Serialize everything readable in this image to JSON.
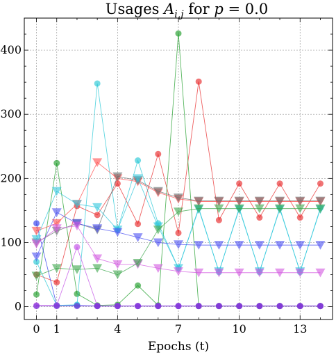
{
  "chart_data": {
    "type": "line",
    "title": "Usages A_{i,j} for p = 0.0",
    "title_parts": {
      "prefix": "Usages ",
      "symbol": "A",
      "subscript": "i,j",
      "suffix": " for ",
      "var": "p",
      "equals": " = 0.0"
    },
    "xlabel": "Epochs (t)",
    "ylabel": "",
    "xlim": [
      -0.6,
      14.6
    ],
    "ylim": [
      -20,
      450
    ],
    "xticks": [
      0,
      1,
      4,
      7,
      10,
      13
    ],
    "yticks": [
      0,
      100,
      200,
      300,
      400
    ],
    "grid": true,
    "x": [
      0,
      1,
      2,
      3,
      4,
      5,
      6,
      7,
      8,
      9,
      10,
      11,
      12,
      13,
      14
    ],
    "series": [
      {
        "color": "#e8292b",
        "marker": "circle",
        "values": [
          50,
          38,
          157,
          143,
          192,
          129,
          238,
          115,
          351,
          135,
          192,
          139,
          192,
          139,
          192
        ]
      },
      {
        "color": "#1f9d2a",
        "marker": "circle",
        "values": [
          19,
          224,
          20,
          2,
          3,
          33,
          2,
          426,
          1,
          1,
          1,
          1,
          1,
          1,
          1
        ]
      },
      {
        "color": "#2f3aee",
        "marker": "circle",
        "values": [
          130,
          2,
          2,
          1,
          1,
          1,
          1,
          1,
          1,
          1,
          1,
          1,
          1,
          1,
          1
        ]
      },
      {
        "color": "#28c8d6",
        "marker": "circle",
        "values": [
          70,
          2,
          3,
          348,
          120,
          228,
          130,
          60,
          154,
          54,
          154,
          54,
          154,
          54,
          154
        ]
      },
      {
        "color": "#c24fe6",
        "marker": "circle",
        "values": [
          2,
          2,
          93,
          1,
          1,
          1,
          1,
          1,
          1,
          1,
          1,
          1,
          1,
          1,
          1
        ]
      },
      {
        "color": "#7a2fd6",
        "marker": "circle",
        "values": [
          1,
          1,
          1,
          1,
          1,
          1,
          1,
          1,
          1,
          1,
          1,
          1,
          1,
          1,
          1
        ]
      },
      {
        "color": "#ff4b4b",
        "marker": "triangle",
        "values": [
          118,
          130,
          160,
          225,
          200,
          195,
          178,
          168,
          164,
          164,
          164,
          164,
          164,
          164,
          164
        ]
      },
      {
        "color": "#666e6e",
        "marker": "triangle",
        "values": [
          100,
          118,
          130,
          120,
          203,
          197,
          180,
          170,
          165,
          165,
          165,
          165,
          165,
          165,
          165
        ]
      },
      {
        "color": "#2ec7dc",
        "marker": "triangle",
        "values": [
          105,
          180,
          160,
          155,
          120,
          200,
          125,
          60,
          152,
          55,
          152,
          55,
          152,
          55,
          152
        ]
      },
      {
        "color": "#4a4ff2",
        "marker": "triangle",
        "values": [
          78,
          147,
          130,
          122,
          116,
          108,
          100,
          97,
          96,
          96,
          96,
          96,
          96,
          96,
          96
        ]
      },
      {
        "color": "#d257e0",
        "marker": "triangle",
        "values": [
          98,
          122,
          126,
          75,
          66,
          66,
          60,
          55,
          53,
          53,
          53,
          53,
          53,
          53,
          53
        ]
      },
      {
        "color": "#3aa54a",
        "marker": "triangle",
        "values": [
          48,
          60,
          58,
          60,
          50,
          68,
          120,
          148,
          153,
          153,
          153,
          153,
          153,
          153,
          153
        ]
      }
    ]
  }
}
